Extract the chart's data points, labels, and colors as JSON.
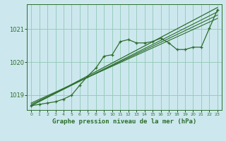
{
  "title": "Graphe pression niveau de la mer (hPa)",
  "background_color": "#cce8ee",
  "grid_color": "#99ccbb",
  "line_color": "#2d6e2d",
  "xlim": [
    -0.5,
    23.5
  ],
  "ylim": [
    1018.55,
    1021.75
  ],
  "yticks": [
    1019,
    1020,
    1021
  ],
  "xtick_labels": [
    "0",
    "1",
    "2",
    "3",
    "4",
    "5",
    "6",
    "7",
    "8",
    "9",
    "10",
    "11",
    "12",
    "13",
    "14",
    "15",
    "16",
    "17",
    "18",
    "19",
    "20",
    "21",
    "22",
    "23"
  ],
  "main_data": [
    [
      0,
      1018.68
    ],
    [
      1,
      1018.72
    ],
    [
      2,
      1018.76
    ],
    [
      3,
      1018.8
    ],
    [
      4,
      1018.88
    ],
    [
      5,
      1019.0
    ],
    [
      6,
      1019.3
    ],
    [
      7,
      1019.58
    ],
    [
      8,
      1019.82
    ],
    [
      9,
      1020.18
    ],
    [
      10,
      1020.22
    ],
    [
      11,
      1020.62
    ],
    [
      12,
      1020.68
    ],
    [
      13,
      1020.58
    ],
    [
      14,
      1020.58
    ],
    [
      15,
      1020.62
    ],
    [
      16,
      1020.72
    ],
    [
      17,
      1020.58
    ],
    [
      18,
      1020.38
    ],
    [
      19,
      1020.38
    ],
    [
      20,
      1020.45
    ],
    [
      21,
      1020.45
    ],
    [
      22,
      1021.02
    ],
    [
      23,
      1021.58
    ]
  ],
  "smooth_line": [
    [
      0,
      1018.68
    ],
    [
      23,
      1021.65
    ]
  ],
  "trend_line1": [
    [
      0,
      1018.68
    ],
    [
      23,
      1021.52
    ]
  ],
  "trend_line2": [
    [
      0,
      1018.72
    ],
    [
      23,
      1021.42
    ]
  ],
  "trend_line3": [
    [
      0,
      1018.76
    ],
    [
      23,
      1021.32
    ]
  ]
}
